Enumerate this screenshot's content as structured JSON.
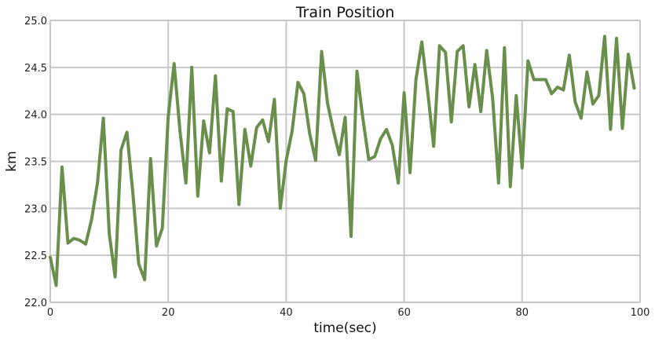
{
  "chart_data": {
    "type": "line",
    "title": "Train Position",
    "xlabel": "time(sec)",
    "ylabel": "km",
    "xlim": [
      0,
      100
    ],
    "ylim": [
      22.0,
      25.0
    ],
    "grid": true,
    "x_ticks": [
      0,
      20,
      40,
      60,
      80,
      100
    ],
    "y_ticks": [
      "22.0",
      "22.5",
      "23.0",
      "23.5",
      "24.0",
      "24.5",
      "25.0"
    ],
    "series": [
      {
        "color": "#6a8f4d",
        "x": [
          0,
          1,
          2,
          3,
          4,
          5,
          6,
          7,
          8,
          9,
          10,
          11,
          12,
          13,
          14,
          15,
          16,
          17,
          18,
          19,
          20,
          21,
          22,
          23,
          24,
          25,
          26,
          27,
          28,
          29,
          30,
          31,
          32,
          33,
          34,
          35,
          36,
          37,
          38,
          39,
          40,
          41,
          42,
          43,
          44,
          45,
          46,
          47,
          48,
          49,
          50,
          51,
          52,
          53,
          54,
          55,
          56,
          57,
          58,
          59,
          60,
          61,
          62,
          63,
          64,
          65,
          66,
          67,
          68,
          69,
          70,
          71,
          72,
          73,
          74,
          75,
          76,
          77,
          78,
          79,
          80,
          81,
          82,
          83,
          84,
          85,
          86,
          87,
          88,
          89,
          90,
          91,
          92,
          93,
          94,
          95,
          96,
          97,
          98,
          99
        ],
        "y": [
          22.48,
          22.18,
          23.44,
          22.63,
          22.68,
          22.66,
          22.62,
          22.88,
          23.27,
          23.96,
          22.73,
          22.27,
          23.62,
          23.81,
          23.17,
          22.41,
          22.24,
          23.53,
          22.6,
          22.79,
          23.98,
          24.54,
          23.82,
          23.27,
          24.5,
          23.13,
          23.93,
          23.59,
          24.41,
          23.29,
          24.06,
          24.03,
          23.04,
          23.84,
          23.45,
          23.86,
          23.94,
          23.71,
          24.16,
          23.0,
          23.51,
          23.82,
          24.34,
          24.22,
          23.79,
          23.51,
          24.67,
          24.12,
          23.83,
          23.57,
          23.97,
          22.7,
          24.46,
          23.96,
          23.52,
          23.55,
          23.74,
          23.84,
          23.67,
          23.27,
          24.23,
          23.38,
          24.37,
          24.77,
          24.24,
          23.66,
          24.73,
          24.66,
          23.92,
          24.67,
          24.73,
          24.08,
          24.53,
          24.03,
          24.68,
          24.17,
          23.27,
          24.71,
          23.23,
          24.2,
          23.43,
          24.57,
          24.37,
          24.37,
          24.37,
          24.22,
          24.29,
          24.26,
          24.63,
          24.13,
          23.96,
          24.45,
          24.11,
          24.2,
          24.83,
          23.84,
          24.81,
          23.85,
          24.64,
          24.28
        ]
      }
    ]
  }
}
